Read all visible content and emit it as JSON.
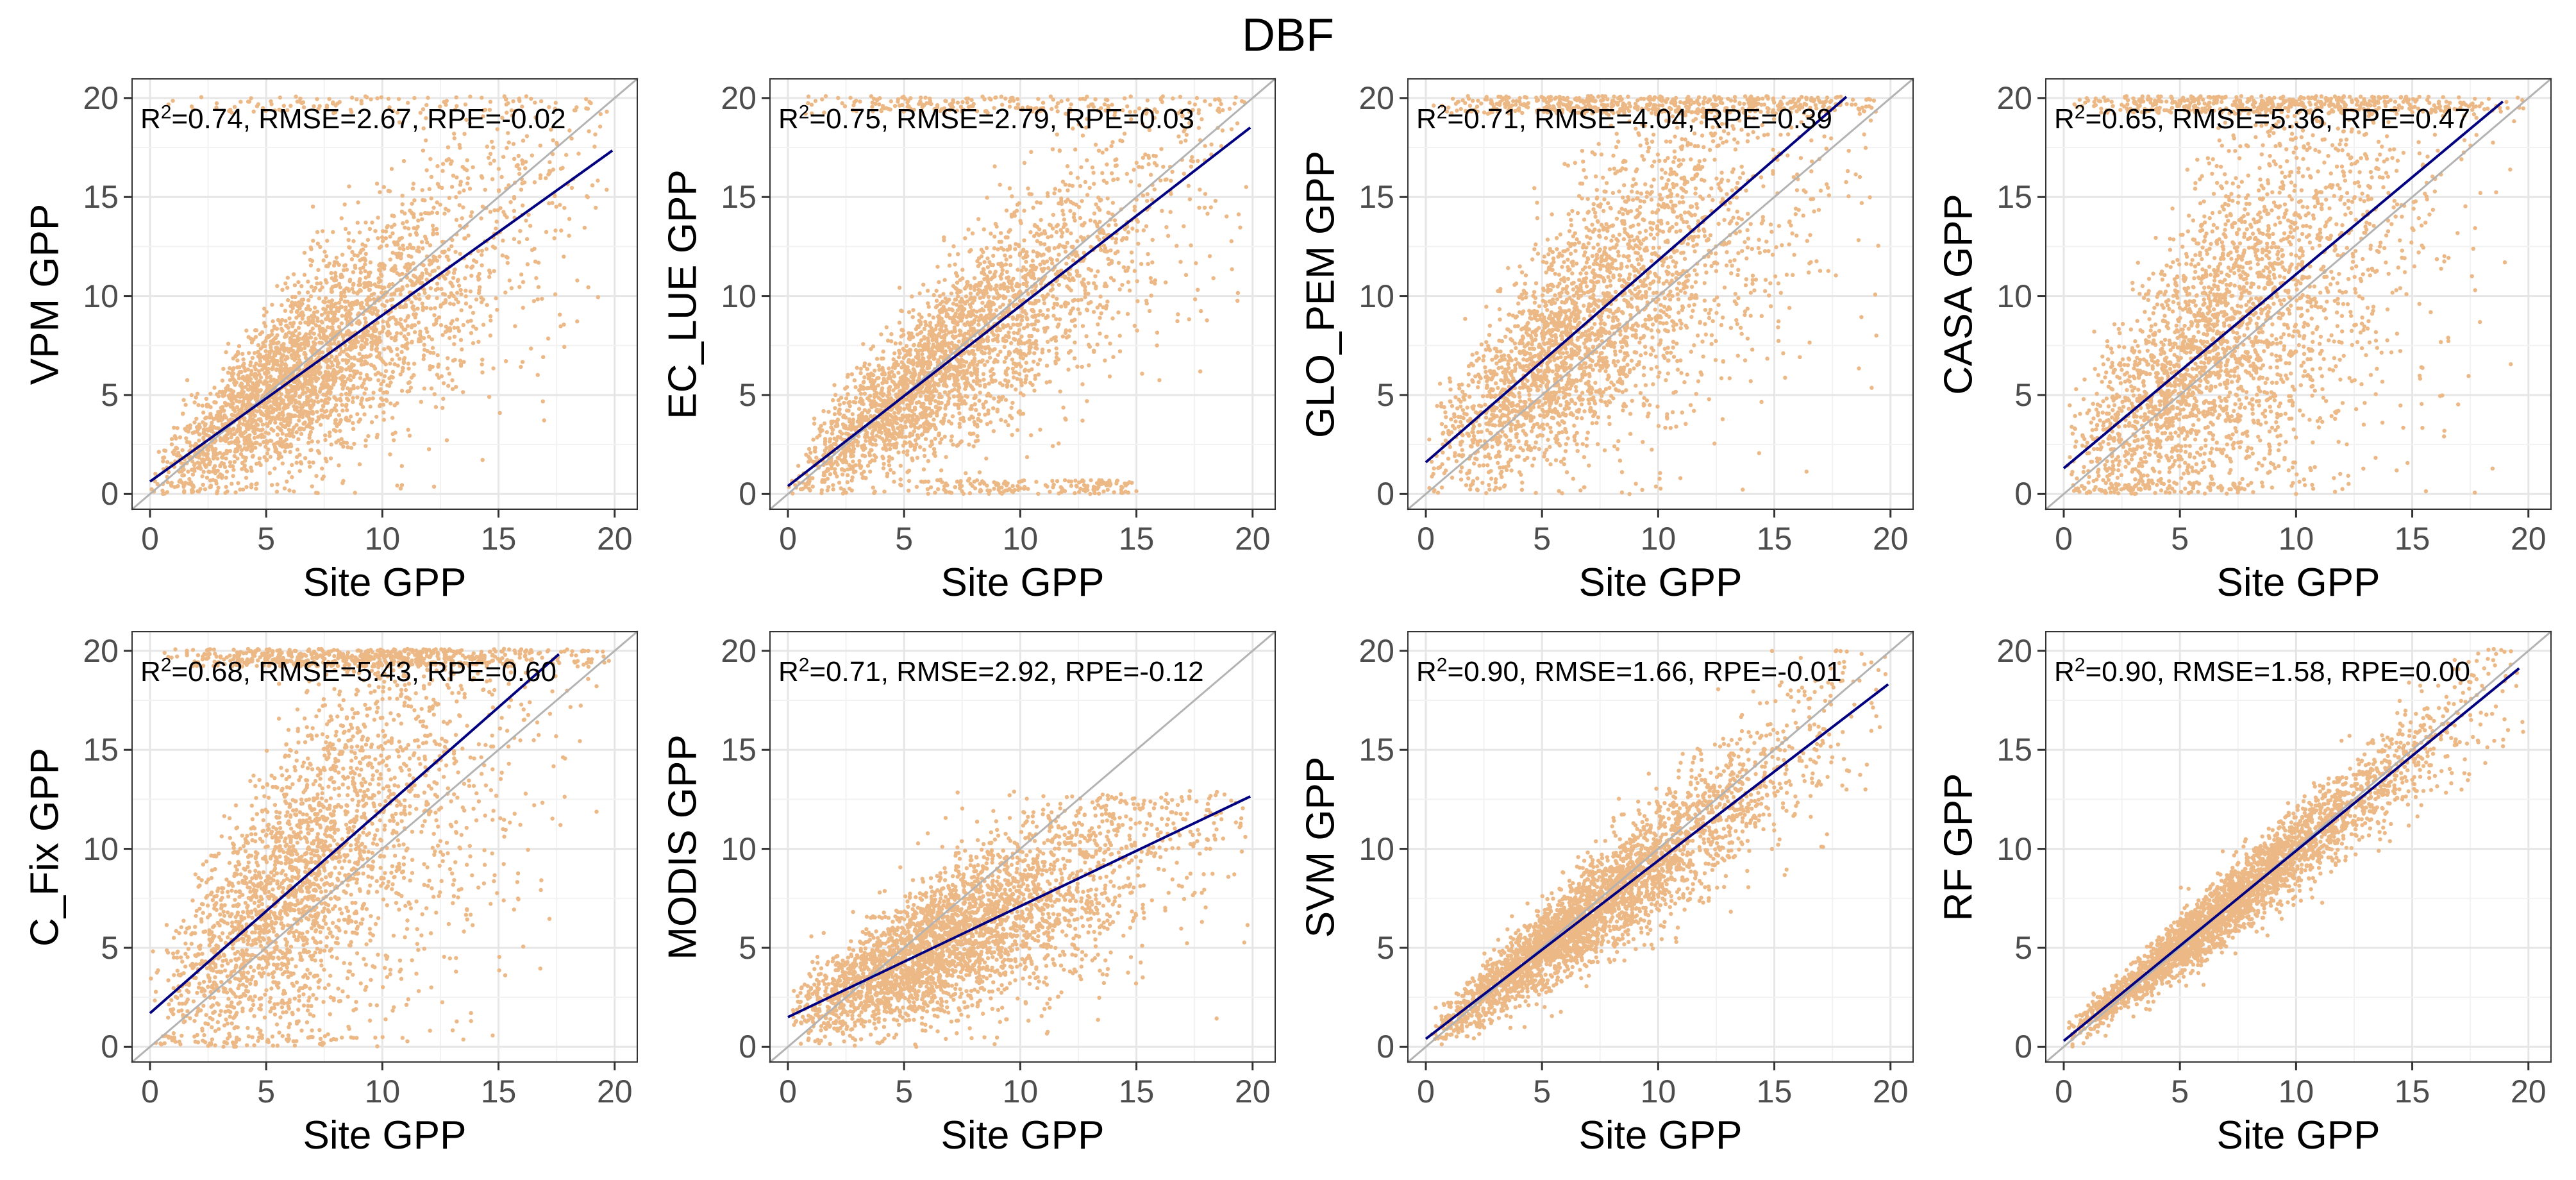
{
  "title": "DBF",
  "chart_data": [
    {
      "type": "scatter",
      "title": "",
      "xlabel": "Site GPP",
      "ylabel": "VPM GPP",
      "xlim": [
        -0.8,
        21
      ],
      "ylim": [
        -0.8,
        21
      ],
      "xticks": [
        0,
        5,
        10,
        15,
        20
      ],
      "yticks": [
        0,
        5,
        10,
        15,
        20
      ],
      "fit": {
        "intercept": 0.63,
        "slope": 0.84,
        "x_end": 19.9
      },
      "identity_line": true,
      "annotation": {
        "r2_label": "R",
        "r2_sup": "2",
        "r2": "0.74",
        "rmse": "2.67",
        "rpe": "-0.02"
      },
      "point_color": "#ecb885",
      "fit_color": "#000080",
      "spread": 2.8,
      "sat": 0.03,
      "low_cluster": 0
    },
    {
      "type": "scatter",
      "title": "",
      "xlabel": "Site GPP",
      "ylabel": "EC_LUE GPP",
      "xlim": [
        -0.8,
        21
      ],
      "ylim": [
        -0.8,
        21
      ],
      "xticks": [
        0,
        5,
        10,
        15,
        20
      ],
      "yticks": [
        0,
        5,
        10,
        15,
        20
      ],
      "fit": {
        "intercept": 0.4,
        "slope": 0.91,
        "x_end": 19.9
      },
      "identity_line": true,
      "annotation": {
        "r2_label": "R",
        "r2_sup": "2",
        "r2": "0.75",
        "rmse": "2.79",
        "rpe": "0.03"
      },
      "point_color": "#ecb885",
      "fit_color": "#000080",
      "spread": 2.6,
      "sat": 0.06,
      "low_cluster": 0.06
    },
    {
      "type": "scatter",
      "title": "",
      "xlabel": "Site GPP",
      "ylabel": "GLO_PEM GPP",
      "xlim": [
        -0.8,
        21
      ],
      "ylim": [
        -0.8,
        21
      ],
      "xticks": [
        0,
        5,
        10,
        15,
        20
      ],
      "yticks": [
        0,
        5,
        10,
        15,
        20
      ],
      "fit": {
        "intercept": 1.6,
        "slope": 1.02,
        "x_end": 18.1
      },
      "identity_line": true,
      "annotation": {
        "r2_label": "R",
        "r2_sup": "2",
        "r2": "0.71",
        "rmse": "4.04",
        "rpe": "0.39"
      },
      "point_color": "#ecb885",
      "fit_color": "#000080",
      "spread": 3.9,
      "sat": 0.12,
      "low_cluster": 0
    },
    {
      "type": "scatter",
      "title": "",
      "xlabel": "Site GPP",
      "ylabel": "CASA GPP",
      "xlim": [
        -0.8,
        21
      ],
      "ylim": [
        -0.8,
        21
      ],
      "xticks": [
        0,
        5,
        10,
        15,
        20
      ],
      "yticks": [
        0,
        5,
        10,
        15,
        20
      ],
      "fit": {
        "intercept": 1.3,
        "slope": 0.98,
        "x_end": 18.9
      },
      "identity_line": true,
      "annotation": {
        "r2_label": "R",
        "r2_sup": "2",
        "r2": "0.65",
        "rmse": "5.36",
        "rpe": "0.47"
      },
      "point_color": "#ecb885",
      "fit_color": "#000080",
      "spread": 5.0,
      "sat": 0.1,
      "low_cluster": 0
    },
    {
      "type": "scatter",
      "title": "",
      "xlabel": "Site GPP",
      "ylabel": "C_Fix GPP",
      "xlim": [
        -0.8,
        21
      ],
      "ylim": [
        -0.8,
        21
      ],
      "xticks": [
        0,
        5,
        10,
        15,
        20
      ],
      "yticks": [
        0,
        5,
        10,
        15,
        20
      ],
      "fit": {
        "intercept": 1.7,
        "slope": 1.03,
        "x_end": 17.6
      },
      "identity_line": true,
      "annotation": {
        "r2_label": "R",
        "r2_sup": "2",
        "r2": "0.68",
        "rmse": "5.43",
        "rpe": "0.60"
      },
      "point_color": "#ecb885",
      "fit_color": "#000080",
      "spread": 5.0,
      "sat": 0.14,
      "low_cluster": 0
    },
    {
      "type": "scatter",
      "title": "",
      "xlabel": "Site GPP",
      "ylabel": "MODIS GPP",
      "xlim": [
        -0.8,
        21
      ],
      "ylim": [
        -0.8,
        21
      ],
      "xticks": [
        0,
        5,
        10,
        15,
        20
      ],
      "yticks": [
        0,
        5,
        10,
        15,
        20
      ],
      "fit": {
        "intercept": 1.5,
        "slope": 0.56,
        "x_end": 19.9
      },
      "identity_line": true,
      "annotation": {
        "r2_label": "R",
        "r2_sup": "2",
        "r2": "0.71",
        "rmse": "2.92",
        "rpe": "-0.12"
      },
      "point_color": "#ecb885",
      "fit_color": "#000080",
      "spread": 2.2,
      "sat": 0,
      "low_cluster": 0,
      "cap": 13
    },
    {
      "type": "scatter",
      "title": "",
      "xlabel": "Site GPP",
      "ylabel": "SVM GPP",
      "xlim": [
        -0.8,
        21
      ],
      "ylim": [
        -0.8,
        21
      ],
      "xticks": [
        0,
        5,
        10,
        15,
        20
      ],
      "yticks": [
        0,
        5,
        10,
        15,
        20
      ],
      "fit": {
        "intercept": 0.4,
        "slope": 0.9,
        "x_end": 19.9
      },
      "identity_line": true,
      "annotation": {
        "r2_label": "R",
        "r2_sup": "2",
        "r2": "0.90",
        "rmse": "1.66",
        "rpe": "-0.01"
      },
      "point_color": "#ecb885",
      "fit_color": "#000080",
      "spread": 1.5,
      "sat": 0,
      "low_cluster": 0
    },
    {
      "type": "scatter",
      "title": "",
      "xlabel": "Site GPP",
      "ylabel": "RF GPP",
      "xlim": [
        -0.8,
        21
      ],
      "ylim": [
        -0.8,
        21
      ],
      "xticks": [
        0,
        5,
        10,
        15,
        20
      ],
      "yticks": [
        0,
        5,
        10,
        15,
        20
      ],
      "fit": {
        "intercept": 0.3,
        "slope": 0.96,
        "x_end": 19.6
      },
      "identity_line": true,
      "annotation": {
        "r2_label": "R",
        "r2_sup": "2",
        "r2": "0.90",
        "rmse": "1.58",
        "rpe": "0.00"
      },
      "point_color": "#ecb885",
      "fit_color": "#000080",
      "spread": 1.0,
      "sat": 0,
      "low_cluster": 0
    }
  ]
}
